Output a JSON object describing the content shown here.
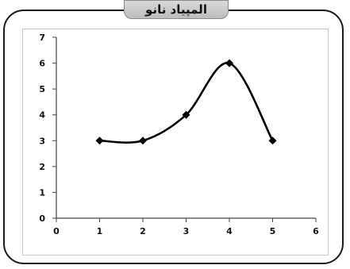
{
  "header": {
    "title": "المپیاد نانو"
  },
  "chart_data": {
    "type": "line",
    "title": "",
    "xlabel": "",
    "ylabel": "",
    "xlim": [
      0,
      6
    ],
    "ylim": [
      0,
      7
    ],
    "x_ticks": [
      0,
      1,
      2,
      3,
      4,
      5,
      6
    ],
    "y_ticks": [
      0,
      1,
      2,
      3,
      4,
      5,
      6,
      7
    ],
    "grid": false,
    "smooth": true,
    "series": [
      {
        "x": [
          1,
          2,
          3,
          4,
          5
        ],
        "y": [
          3,
          3,
          4,
          6,
          3
        ],
        "color": "#000000",
        "marker": "diamond"
      }
    ]
  }
}
